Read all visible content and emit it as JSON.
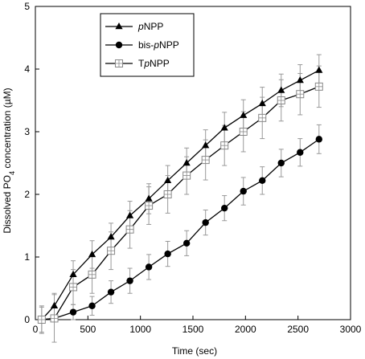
{
  "chart_data": {
    "type": "line",
    "title": "",
    "xlabel": "Time (sec)",
    "ylabel_parts": [
      "Dissolved PO",
      "4",
      " concentration (µM)"
    ],
    "xlim": [
      0,
      3000
    ],
    "ylim": [
      0,
      5
    ],
    "xticks": [
      0,
      500,
      1000,
      1500,
      2000,
      2500,
      3000
    ],
    "yticks": [
      0,
      1,
      2,
      3,
      4,
      5
    ],
    "grid": false,
    "legend_position": "top-left",
    "series": [
      {
        "name_parts": [
          [
            "",
            false
          ],
          [
            "p",
            true
          ],
          [
            "NPP",
            false
          ]
        ],
        "marker": "triangle",
        "x": [
          60,
          180,
          360,
          540,
          720,
          900,
          1080,
          1260,
          1440,
          1620,
          1800,
          1980,
          2160,
          2340,
          2520,
          2700
        ],
        "y": [
          0.0,
          0.22,
          0.72,
          1.04,
          1.32,
          1.66,
          1.93,
          2.22,
          2.5,
          2.78,
          3.06,
          3.26,
          3.45,
          3.66,
          3.82,
          3.98
        ],
        "err": [
          0.2,
          0.2,
          0.22,
          0.22,
          0.22,
          0.23,
          0.24,
          0.24,
          0.24,
          0.25,
          0.25,
          0.25,
          0.26,
          0.26,
          0.25,
          0.25
        ]
      },
      {
        "name_parts": [
          [
            "bis-",
            false
          ],
          [
            "p",
            true
          ],
          [
            "NPP",
            false
          ]
        ],
        "marker": "circle",
        "x": [
          60,
          180,
          360,
          540,
          720,
          900,
          1080,
          1260,
          1440,
          1620,
          1800,
          1980,
          2160,
          2340,
          2520,
          2700
        ],
        "y": [
          0.0,
          0.02,
          0.12,
          0.22,
          0.44,
          0.62,
          0.84,
          1.05,
          1.22,
          1.55,
          1.78,
          2.05,
          2.22,
          2.5,
          2.67,
          2.88
        ],
        "err": [
          0.0,
          0.0,
          0.12,
          0.15,
          0.18,
          0.2,
          0.2,
          0.2,
          0.2,
          0.2,
          0.2,
          0.22,
          0.22,
          0.22,
          0.22,
          0.23
        ]
      },
      {
        "name_parts": [
          [
            "T",
            false
          ],
          [
            "p",
            true
          ],
          [
            "NPP",
            false
          ]
        ],
        "marker": "square",
        "x": [
          60,
          180,
          360,
          540,
          720,
          900,
          1080,
          1260,
          1440,
          1620,
          1800,
          1980,
          2160,
          2340,
          2520,
          2700
        ],
        "y": [
          0.0,
          0.02,
          0.52,
          0.72,
          1.1,
          1.44,
          1.82,
          2.0,
          2.3,
          2.55,
          2.78,
          3.0,
          3.22,
          3.5,
          3.6,
          3.72
        ],
        "err": [
          0.22,
          0.38,
          0.28,
          0.3,
          0.3,
          0.3,
          0.3,
          0.3,
          0.3,
          0.32,
          0.32,
          0.32,
          0.33,
          0.33,
          0.33,
          0.33
        ]
      }
    ]
  }
}
